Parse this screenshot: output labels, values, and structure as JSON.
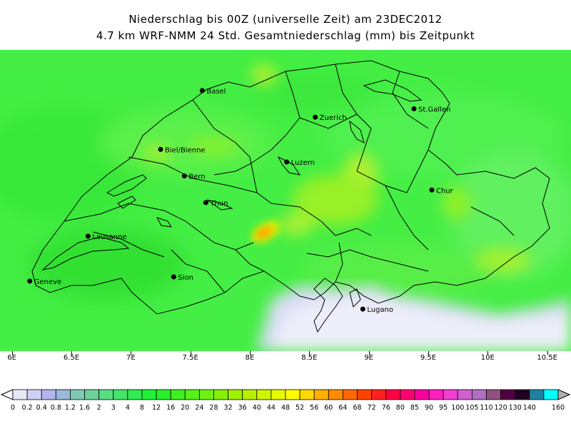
{
  "title_line1": "Niederschlag bis 00Z (universelle Zeit) am 23DEC2012",
  "title_line2": "4.7 km WRF-NMM 24 Std. Gesamtniederschlag (mm) bis Zeitpunkt",
  "map": {
    "lon_range": [
      5.9,
      10.7
    ],
    "x_ticks": [
      {
        "lon": 6.0,
        "label": "6E"
      },
      {
        "lon": 6.5,
        "label": "6.5E"
      },
      {
        "lon": 7.0,
        "label": "7E"
      },
      {
        "lon": 7.5,
        "label": "7.5E"
      },
      {
        "lon": 8.0,
        "label": "8E"
      },
      {
        "lon": 8.5,
        "label": "8.5E"
      },
      {
        "lon": 9.0,
        "label": "9E"
      },
      {
        "lon": 9.5,
        "label": "9.5E"
      },
      {
        "lon": 10.0,
        "label": "10E"
      },
      {
        "lon": 10.5,
        "label": "10.5E"
      }
    ],
    "cities": [
      {
        "name": "Basel",
        "lon": 7.6,
        "lat": 47.56
      },
      {
        "name": "Zuerich",
        "lon": 8.55,
        "lat": 47.37
      },
      {
        "name": "St.Gallen",
        "lon": 9.38,
        "lat": 47.43
      },
      {
        "name": "Biel/Bienne",
        "lon": 7.25,
        "lat": 47.14
      },
      {
        "name": "Luzern",
        "lon": 8.31,
        "lat": 47.05
      },
      {
        "name": "Bern",
        "lon": 7.45,
        "lat": 46.95
      },
      {
        "name": "Chur",
        "lon": 9.53,
        "lat": 46.85
      },
      {
        "name": "Thun",
        "lon": 7.63,
        "lat": 46.76
      },
      {
        "name": "Lausanne",
        "lon": 6.64,
        "lat": 46.52
      },
      {
        "name": "Geneve",
        "lon": 6.15,
        "lat": 46.2
      },
      {
        "name": "Sion",
        "lon": 7.36,
        "lat": 46.23
      },
      {
        "name": "Lugano",
        "lon": 8.95,
        "lat": 46.0
      }
    ]
  },
  "colorbar": {
    "labels": [
      "0",
      "0.2",
      "0.4",
      "0.8",
      "1.2",
      "1.6",
      "2",
      "3",
      "4",
      "8",
      "12",
      "16",
      "20",
      "24",
      "28",
      "32",
      "36",
      "40",
      "44",
      "48",
      "52",
      "56",
      "60",
      "64",
      "68",
      "72",
      "76",
      "80",
      "85",
      "90",
      "95",
      "100",
      "105",
      "110",
      "120",
      "130",
      "140",
      "160"
    ],
    "colors": [
      "#e8e8f8",
      "#d0d0f4",
      "#b4b4ee",
      "#9ab8d8",
      "#80c8b4",
      "#6cd29a",
      "#58dc82",
      "#44e46a",
      "#30ec52",
      "#20f038",
      "#28f028",
      "#40f020",
      "#58f018",
      "#70f010",
      "#88f008",
      "#a0f000",
      "#b8f000",
      "#d0f400",
      "#e8f800",
      "#ffff00",
      "#ffd800",
      "#ffb000",
      "#ff8c00",
      "#ff6800",
      "#ff4400",
      "#ff2020",
      "#ff0040",
      "#ff0070",
      "#ff00a0",
      "#ff20c0",
      "#f040d0",
      "#d060d0",
      "#b070c0",
      "#905080",
      "#500040",
      "#200020",
      "#2080a0",
      "#00ffff"
    ]
  },
  "colors": {
    "base_green": "#4cf14c",
    "dry_white": "#f0f0fb",
    "lake_line": "#000000"
  }
}
